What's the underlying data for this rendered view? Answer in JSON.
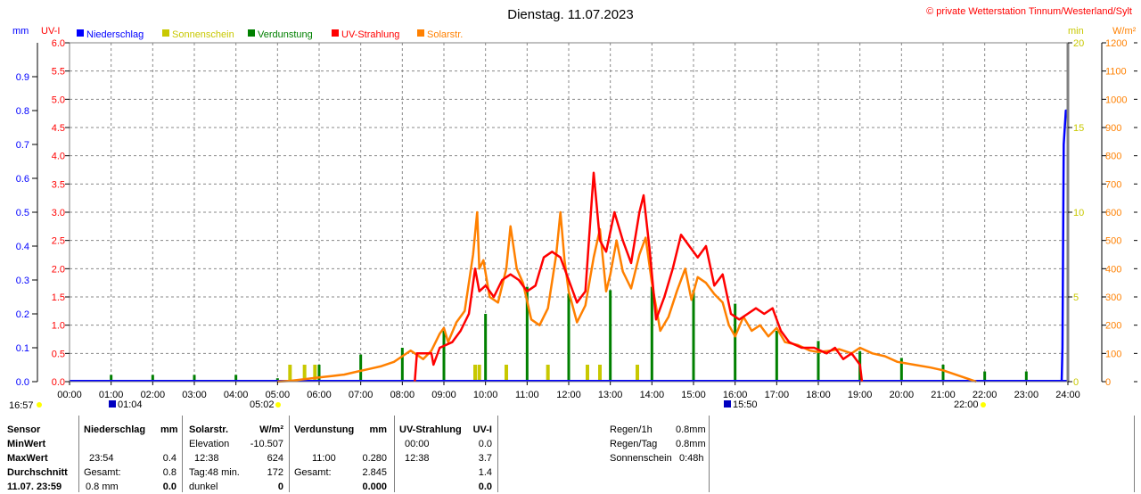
{
  "header": {
    "title": "Dienstag. 11.07.2023",
    "credit": "© private Wetterstation Tinnum/Westerland/Sylt"
  },
  "units": {
    "mm": "mm",
    "uvi": "UV-I",
    "min": "min",
    "wm2": "W/m²"
  },
  "legend": [
    {
      "label": "Niederschlag",
      "color": "#0000ff"
    },
    {
      "label": "Sonnenschein",
      "color": "#c8c800"
    },
    {
      "label": "Verdunstung",
      "color": "#008000"
    },
    {
      "label": "UV-Strahlung",
      "color": "#ff0000"
    },
    {
      "label": "Solarstr.",
      "color": "#ff8000"
    }
  ],
  "marks": {
    "sunrise_time": "05:02",
    "sunset_time": "22:00",
    "bottom_left": "16:57",
    "moonrise": "01:04",
    "moonset": "15:50"
  },
  "chart_data": {
    "type": "line",
    "x_ticks": [
      "00:00",
      "01:00",
      "02:00",
      "03:00",
      "04:00",
      "05:00",
      "06:00",
      "07:00",
      "08:00",
      "09:00",
      "10:00",
      "11:00",
      "12:00",
      "13:00",
      "14:00",
      "15:00",
      "16:00",
      "17:00",
      "18:00",
      "19:00",
      "20:00",
      "21:00",
      "22:00",
      "23:00",
      "24:00"
    ],
    "axes": {
      "mm": {
        "range": [
          0,
          1.0
        ],
        "ticks": [
          "0.0",
          "0.1",
          "0.2",
          "0.3",
          "0.4",
          "0.5",
          "0.6",
          "0.7",
          "0.8",
          "0.9"
        ]
      },
      "uvi": {
        "range": [
          0,
          6.0
        ],
        "ticks": [
          "0.0",
          "0.5",
          "1.0",
          "1.5",
          "2.0",
          "2.5",
          "3.0",
          "3.5",
          "4.0",
          "4.5",
          "5.0",
          "5.5",
          "6.0"
        ]
      },
      "min": {
        "range": [
          0,
          20
        ],
        "ticks": [
          "0",
          "5",
          "10",
          "15",
          "20"
        ]
      },
      "wm2": {
        "range": [
          0,
          1200
        ],
        "ticks": [
          "0",
          "100",
          "200",
          "300",
          "400",
          "500",
          "600",
          "700",
          "800",
          "900",
          "1000",
          "1100",
          "1200"
        ]
      }
    },
    "series": [
      {
        "name": "Solarstr.",
        "axis": "wm2",
        "color": "#ff8000",
        "points": [
          [
            5.0,
            0
          ],
          [
            5.3,
            3
          ],
          [
            5.6,
            8
          ],
          [
            6.0,
            15
          ],
          [
            6.3,
            20
          ],
          [
            6.6,
            25
          ],
          [
            6.9,
            35
          ],
          [
            7.2,
            45
          ],
          [
            7.5,
            55
          ],
          [
            7.8,
            70
          ],
          [
            8.0,
            90
          ],
          [
            8.2,
            110
          ],
          [
            8.5,
            80
          ],
          [
            8.7,
            110
          ],
          [
            8.9,
            170
          ],
          [
            9.0,
            190
          ],
          [
            9.1,
            140
          ],
          [
            9.3,
            210
          ],
          [
            9.5,
            250
          ],
          [
            9.7,
            450
          ],
          [
            9.8,
            600
          ],
          [
            9.85,
            400
          ],
          [
            9.95,
            430
          ],
          [
            10.1,
            300
          ],
          [
            10.3,
            280
          ],
          [
            10.5,
            400
          ],
          [
            10.6,
            550
          ],
          [
            10.75,
            400
          ],
          [
            10.9,
            350
          ],
          [
            11.1,
            220
          ],
          [
            11.3,
            200
          ],
          [
            11.5,
            260
          ],
          [
            11.7,
            450
          ],
          [
            11.8,
            600
          ],
          [
            11.9,
            430
          ],
          [
            12.0,
            320
          ],
          [
            12.2,
            210
          ],
          [
            12.4,
            270
          ],
          [
            12.6,
            440
          ],
          [
            12.75,
            540
          ],
          [
            12.9,
            320
          ],
          [
            13.0,
            380
          ],
          [
            13.15,
            500
          ],
          [
            13.3,
            390
          ],
          [
            13.5,
            330
          ],
          [
            13.7,
            450
          ],
          [
            13.85,
            510
          ],
          [
            14.0,
            350
          ],
          [
            14.2,
            180
          ],
          [
            14.4,
            230
          ],
          [
            14.6,
            320
          ],
          [
            14.8,
            400
          ],
          [
            14.95,
            290
          ],
          [
            15.1,
            370
          ],
          [
            15.3,
            350
          ],
          [
            15.5,
            310
          ],
          [
            15.7,
            280
          ],
          [
            15.85,
            200
          ],
          [
            16.0,
            160
          ],
          [
            16.2,
            230
          ],
          [
            16.4,
            180
          ],
          [
            16.6,
            200
          ],
          [
            16.8,
            160
          ],
          [
            17.0,
            190
          ],
          [
            17.2,
            140
          ],
          [
            17.5,
            130
          ],
          [
            17.8,
            110
          ],
          [
            18.0,
            105
          ],
          [
            18.3,
            110
          ],
          [
            18.5,
            115
          ],
          [
            18.8,
            100
          ],
          [
            19.0,
            120
          ],
          [
            19.3,
            100
          ],
          [
            19.6,
            90
          ],
          [
            19.9,
            70
          ],
          [
            20.3,
            60
          ],
          [
            20.7,
            50
          ],
          [
            21.0,
            40
          ],
          [
            21.3,
            25
          ],
          [
            21.6,
            10
          ],
          [
            21.8,
            0
          ]
        ]
      },
      {
        "name": "UV-Strahlung",
        "axis": "uvi",
        "color": "#ff0000",
        "points": [
          [
            8.3,
            0
          ],
          [
            8.35,
            0.5
          ],
          [
            8.7,
            0.5
          ],
          [
            8.75,
            0.3
          ],
          [
            8.9,
            0.6
          ],
          [
            9.2,
            0.7
          ],
          [
            9.4,
            0.9
          ],
          [
            9.6,
            1.2
          ],
          [
            9.75,
            2.0
          ],
          [
            9.85,
            1.6
          ],
          [
            10.0,
            1.7
          ],
          [
            10.2,
            1.5
          ],
          [
            10.4,
            1.8
          ],
          [
            10.6,
            1.9
          ],
          [
            10.8,
            1.8
          ],
          [
            11.0,
            1.6
          ],
          [
            11.2,
            1.7
          ],
          [
            11.4,
            2.2
          ],
          [
            11.6,
            2.3
          ],
          [
            11.8,
            2.2
          ],
          [
            12.0,
            1.8
          ],
          [
            12.2,
            1.4
          ],
          [
            12.4,
            1.6
          ],
          [
            12.6,
            3.7
          ],
          [
            12.75,
            2.5
          ],
          [
            12.9,
            2.3
          ],
          [
            13.1,
            3.0
          ],
          [
            13.3,
            2.5
          ],
          [
            13.5,
            2.1
          ],
          [
            13.7,
            3.0
          ],
          [
            13.8,
            3.3
          ],
          [
            13.95,
            2.3
          ],
          [
            14.1,
            1.1
          ],
          [
            14.3,
            1.5
          ],
          [
            14.5,
            2.0
          ],
          [
            14.7,
            2.6
          ],
          [
            14.9,
            2.4
          ],
          [
            15.1,
            2.2
          ],
          [
            15.3,
            2.4
          ],
          [
            15.5,
            1.7
          ],
          [
            15.7,
            1.9
          ],
          [
            15.9,
            1.2
          ],
          [
            16.1,
            1.1
          ],
          [
            16.3,
            1.2
          ],
          [
            16.5,
            1.3
          ],
          [
            16.7,
            1.2
          ],
          [
            16.9,
            1.3
          ],
          [
            17.1,
            0.9
          ],
          [
            17.3,
            0.7
          ],
          [
            17.6,
            0.6
          ],
          [
            17.9,
            0.6
          ],
          [
            18.2,
            0.5
          ],
          [
            18.4,
            0.6
          ],
          [
            18.6,
            0.4
          ],
          [
            18.8,
            0.5
          ],
          [
            19.0,
            0.3
          ],
          [
            19.05,
            0
          ]
        ]
      },
      {
        "name": "Niederschlag",
        "axis": "mm",
        "color": "#0000ff",
        "points": [
          [
            23.85,
            0
          ],
          [
            23.87,
            0.1
          ],
          [
            23.9,
            0.7
          ],
          [
            23.95,
            0.8
          ],
          [
            24.0,
            0.8
          ]
        ]
      }
    ],
    "bars": [
      {
        "name": "Verdunstung",
        "axis": "mm",
        "color": "#008000",
        "values": [
          [
            1.0,
            0.02
          ],
          [
            2.0,
            0.02
          ],
          [
            3.0,
            0.02
          ],
          [
            4.0,
            0.02
          ],
          [
            5.0,
            0.01
          ],
          [
            6.0,
            0.05
          ],
          [
            7.0,
            0.08
          ],
          [
            8.0,
            0.1
          ],
          [
            9.0,
            0.15
          ],
          [
            10.0,
            0.2
          ],
          [
            11.0,
            0.28
          ],
          [
            12.0,
            0.26
          ],
          [
            13.0,
            0.27
          ],
          [
            14.0,
            0.28
          ],
          [
            15.0,
            0.27
          ],
          [
            16.0,
            0.23
          ],
          [
            17.0,
            0.15
          ],
          [
            18.0,
            0.12
          ],
          [
            19.0,
            0.09
          ],
          [
            20.0,
            0.07
          ],
          [
            21.0,
            0.05
          ],
          [
            22.0,
            0.03
          ],
          [
            23.0,
            0.03
          ]
        ]
      },
      {
        "name": "Sonnenschein",
        "axis": "min",
        "color": "#c8c800",
        "values": [
          [
            5.3,
            1
          ],
          [
            5.65,
            1
          ],
          [
            5.9,
            1
          ],
          [
            9.75,
            1
          ],
          [
            9.85,
            1
          ],
          [
            10.5,
            1
          ],
          [
            11.5,
            1
          ],
          [
            12.45,
            1
          ],
          [
            12.75,
            1
          ],
          [
            13.65,
            1
          ]
        ]
      }
    ]
  },
  "table": {
    "col1": {
      "head": "Sensor",
      "rows": [
        "MinWert",
        "MaxWert",
        "Durchschnitt",
        "11.07. 23:59"
      ]
    },
    "niederschlag": {
      "head": "Niederschlag",
      "unit": "mm",
      "maxTime": "23:54",
      "maxVal": "0.4",
      "gesLabel": "Gesamt:",
      "gesVal": "0.8",
      "lastL": "0.8 mm",
      "lastR": "0.0"
    },
    "solar": {
      "head": "Solarstr.",
      "unit": "W/m²",
      "minL": "Elevation",
      "minR": "-10.507",
      "maxL": "12:38",
      "maxR": "624",
      "avgL": "Tag:48 min.",
      "avgR": "172",
      "lastL": "dunkel",
      "lastR": "0"
    },
    "verdunstung": {
      "head": "Verdunstung",
      "unit": "mm",
      "maxL": "11:00",
      "maxR": "0.280",
      "avgL": "Gesamt:",
      "avgR": "2.845",
      "lastR": "0.000"
    },
    "uv": {
      "head": "UV-Strahlung",
      "unit": "UV-I",
      "minL": "00:00",
      "minR": "0.0",
      "maxL": "12:38",
      "maxR": "3.7",
      "avgR": "1.4",
      "lastR": "0.0"
    },
    "extra": [
      {
        "label": "Regen/1h",
        "value": "0.8mm"
      },
      {
        "label": "Regen/Tag",
        "value": "0.8mm"
      },
      {
        "label": "Sonnenschein",
        "value": "0:48h"
      }
    ]
  }
}
